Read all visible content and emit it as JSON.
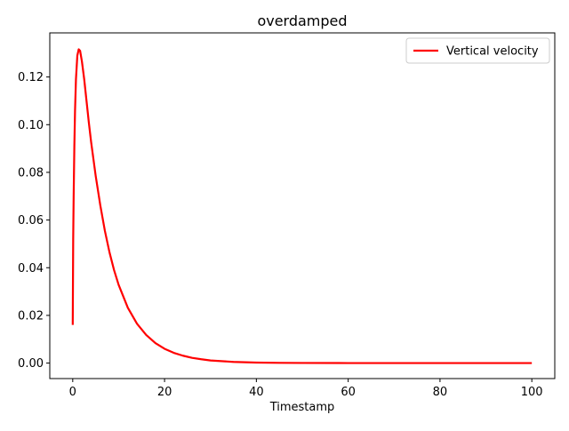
{
  "chart_data": {
    "type": "line",
    "title": "overdamped",
    "xlabel": "Timestamp",
    "ylabel": "",
    "xlim": [
      -5,
      105
    ],
    "ylim": [
      -0.0065,
      0.1385
    ],
    "grid": false,
    "legend_position": "top-right",
    "x_ticks": [
      0,
      20,
      40,
      60,
      80,
      100
    ],
    "x_tick_labels": [
      "0",
      "20",
      "40",
      "60",
      "80",
      "100"
    ],
    "y_ticks": [
      0.0,
      0.02,
      0.04,
      0.06,
      0.08,
      0.1,
      0.12
    ],
    "y_tick_labels": [
      "0.00",
      "0.02",
      "0.04",
      "0.06",
      "0.08",
      "0.10",
      "0.12"
    ],
    "series": [
      {
        "name": "Vertical velocity",
        "color": "#ff0000",
        "x": [
          0,
          0.1,
          0.2,
          0.35,
          0.5,
          0.7,
          1.0,
          1.3,
          1.6,
          2.0,
          2.5,
          3.0,
          3.5,
          4,
          5,
          6,
          7,
          8,
          9,
          10,
          12,
          14,
          16,
          18,
          20,
          22,
          24,
          26,
          28,
          30,
          35,
          40,
          45,
          50,
          60,
          70,
          80,
          90,
          100
        ],
        "y": [
          0.016,
          0.052,
          0.07,
          0.091,
          0.106,
          0.119,
          0.129,
          0.1316,
          0.131,
          0.1265,
          0.119,
          0.11,
          0.101,
          0.0928,
          0.0785,
          0.0662,
          0.0555,
          0.0465,
          0.039,
          0.0328,
          0.0232,
          0.0165,
          0.0118,
          0.0084,
          0.006,
          0.0043,
          0.0031,
          0.0022,
          0.0016,
          0.0011,
          0.0005,
          0.0002,
          0.0001,
          5e-05,
          0.0,
          0.0,
          0.0,
          0.0,
          0.0
        ]
      }
    ]
  }
}
